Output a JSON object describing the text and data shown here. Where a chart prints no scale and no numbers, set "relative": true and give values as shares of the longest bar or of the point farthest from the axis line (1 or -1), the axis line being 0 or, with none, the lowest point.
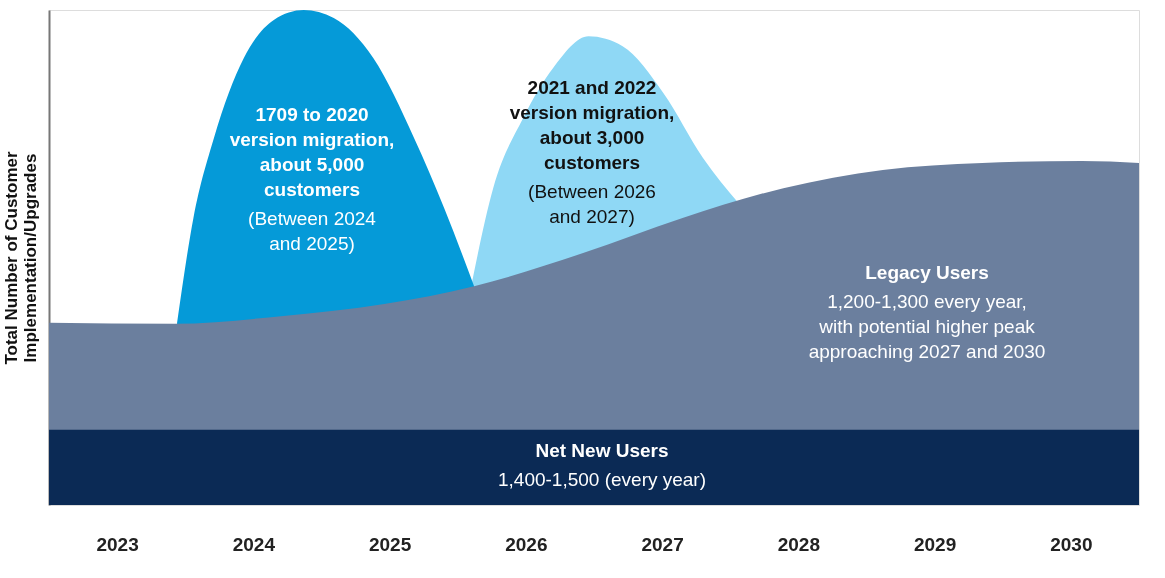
{
  "chart_data": {
    "type": "area",
    "relative": true,
    "ylabel": "Total Number of Customer\nImplementation/Upgrades",
    "xlim": [
      2022.5,
      2030.5
    ],
    "xticks": [
      2023,
      2024,
      2025,
      2026,
      2027,
      2028,
      2029,
      2030
    ],
    "grid": false,
    "series": [
      {
        "name": "2021 and 2022\nversion migration,\nabout 3,000\ncustomers",
        "color": "#8fd8f5",
        "x": [
          2025.6,
          2025.76,
          2025.98,
          2026.2,
          2026.46,
          2026.71,
          2027.01,
          2027.3,
          2027.56
        ],
        "values": [
          0.444,
          0.64,
          0.782,
          0.883,
          0.947,
          0.927,
          0.832,
          0.701,
          0.61
        ]
      },
      {
        "name": "1709 to 2020\nversion migration,\nabout 5,000\ncustomers",
        "color": "#059ad8",
        "x": [
          2023.44,
          2023.56,
          2023.71,
          2023.93,
          2024.15,
          2024.37,
          2024.59,
          2024.88,
          2025.18,
          2025.4,
          2025.62
        ],
        "values": [
          0.368,
          0.58,
          0.741,
          0.903,
          0.98,
          1.0,
          0.984,
          0.903,
          0.741,
          0.6,
          0.442
        ]
      },
      {
        "name": "Legacy Users",
        "color": "#6b7f9e",
        "x": [
          2022.5,
          2023.42,
          2024.22,
          2024.96,
          2025.62,
          2026.42,
          2027.15,
          2027.89,
          2028.62,
          2029.35,
          2030.08,
          2030.5
        ],
        "values": [
          0.368,
          0.366,
          0.382,
          0.406,
          0.442,
          0.509,
          0.58,
          0.64,
          0.677,
          0.691,
          0.695,
          0.691
        ]
      },
      {
        "name": "Net New Users",
        "color": "#0b2a55",
        "x": [
          2022.5,
          2030.5
        ],
        "values": [
          0.152,
          0.152
        ]
      }
    ],
    "annotations": [
      "(Between 2026\nand 2027)",
      "(Between 2024\nand 2025)",
      "1,200-1,300 every year,\nwith potential higher peak\napproaching 2027 and 2030",
      "1,400-1,500 (every year)"
    ]
  }
}
